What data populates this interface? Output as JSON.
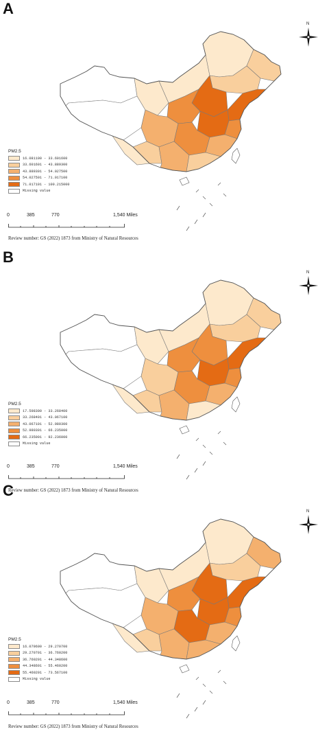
{
  "figure": {
    "panels": [
      {
        "letter": "A",
        "legend_title": "PM2.5",
        "legend_entries": [
          {
            "label": "16.081100 - 33.601600",
            "color": "#fde9cc"
          },
          {
            "label": "33.601601 - 43.889300",
            "color": "#f9cf9d"
          },
          {
            "label": "43.889301 - 54.027500",
            "color": "#f4b06e"
          },
          {
            "label": "54.027501 - 71.017100",
            "color": "#ee8f3e"
          },
          {
            "label": "71.017101 - 100.215000",
            "color": "#e46b14"
          },
          {
            "label": "Missing value",
            "color": "#ffffff"
          }
        ],
        "scale_labels": [
          "0",
          "385",
          "770",
          "1,540 Miles"
        ],
        "north_label": "N",
        "review_text": "Review number: GS (2022) 1873  from Ministry of Natural Resources"
      },
      {
        "letter": "B",
        "legend_title": "PM2.5",
        "legend_entries": [
          {
            "label": "17.598300 - 33.268400",
            "color": "#fde9cc"
          },
          {
            "label": "33.268401 - 43.067100",
            "color": "#f9cf9d"
          },
          {
            "label": "43.067101 - 52.980300",
            "color": "#f4b06e"
          },
          {
            "label": "52.980301 - 66.235000",
            "color": "#ee8f3e"
          },
          {
            "label": "66.235001 - 92.236000",
            "color": "#e46b14"
          },
          {
            "label": "Missing value",
            "color": "#ffffff"
          }
        ],
        "scale_labels": [
          "0",
          "385",
          "770",
          "1,540 Miles"
        ],
        "north_label": "N",
        "review_text": "Review number: GS (2022) 1873  from Ministry of Natural Resources"
      },
      {
        "letter": "C",
        "legend_title": "PM2.5",
        "legend_entries": [
          {
            "label": "16.079600 - 29.270700",
            "color": "#fde9cc"
          },
          {
            "label": "29.270701 - 36.760200",
            "color": "#f9cf9d"
          },
          {
            "label": "36.760201 - 44.348600",
            "color": "#f4b06e"
          },
          {
            "label": "44.348601 - 55.460200",
            "color": "#ee8f3e"
          },
          {
            "label": "55.460201 - 73.567100",
            "color": "#e46b14"
          },
          {
            "label": "Missing value",
            "color": "#ffffff"
          }
        ],
        "scale_labels": [
          "0",
          "385",
          "770",
          "1,540 Miles"
        ],
        "north_label": "N",
        "review_text": "Review number: GS (2022) 1873  from Ministry of Natural Resources"
      }
    ]
  }
}
